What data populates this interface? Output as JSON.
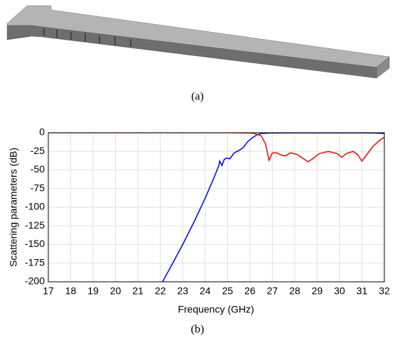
{
  "panel_labels": [
    "(a)",
    "(b)"
  ],
  "chart_data": {
    "type": "line",
    "x_label": "Frequency (GHz)",
    "y_label": "Scattering parameters (dB)",
    "xlim": [
      17,
      32
    ],
    "xticks": [
      17,
      18,
      19,
      20,
      21,
      22,
      23,
      24,
      25,
      26,
      27,
      28,
      29,
      30,
      31,
      32
    ],
    "ylim": [
      -200,
      0
    ],
    "yticks": [
      0,
      -25,
      -50,
      -75,
      -100,
      -125,
      -150,
      -175,
      -200
    ],
    "grid": true,
    "series": [
      {
        "color": "#0000ff",
        "x": [
          22.1,
          22.5,
          23,
          23.5,
          24,
          24.4,
          24.6,
          24.65,
          24.75,
          24.85,
          24.95,
          25.1,
          25.3,
          25.5,
          25.7,
          25.9,
          26.1,
          26.3,
          26.5,
          27,
          28,
          29,
          30,
          31,
          31.5,
          32
        ],
        "values": [
          -200,
          -178,
          -150,
          -120,
          -88,
          -60,
          -45,
          -38,
          -44,
          -36,
          -34,
          -35,
          -27,
          -24,
          -20,
          -12,
          -7,
          -3,
          -1,
          -0.3,
          -0.2,
          -0.2,
          -0.2,
          -0.2,
          -0.3,
          -1
        ]
      },
      {
        "color": "#ff0000",
        "x": [
          17,
          20,
          23,
          25,
          26,
          26.2,
          26.5,
          26.7,
          26.85,
          27,
          27.2,
          27.4,
          27.6,
          27.8,
          28.1,
          28.4,
          28.6,
          28.8,
          29.1,
          29.5,
          29.9,
          30.1,
          30.3,
          30.6,
          30.8,
          31,
          31.2,
          31.5,
          31.8,
          32
        ],
        "values": [
          0,
          0,
          0,
          0,
          -0.3,
          -1,
          -4,
          -15,
          -37,
          -27,
          -27,
          -30,
          -31,
          -27,
          -29,
          -35,
          -39,
          -35,
          -28,
          -25,
          -28,
          -33,
          -28,
          -25,
          -29,
          -38,
          -30,
          -18,
          -10,
          -6
        ]
      }
    ]
  }
}
